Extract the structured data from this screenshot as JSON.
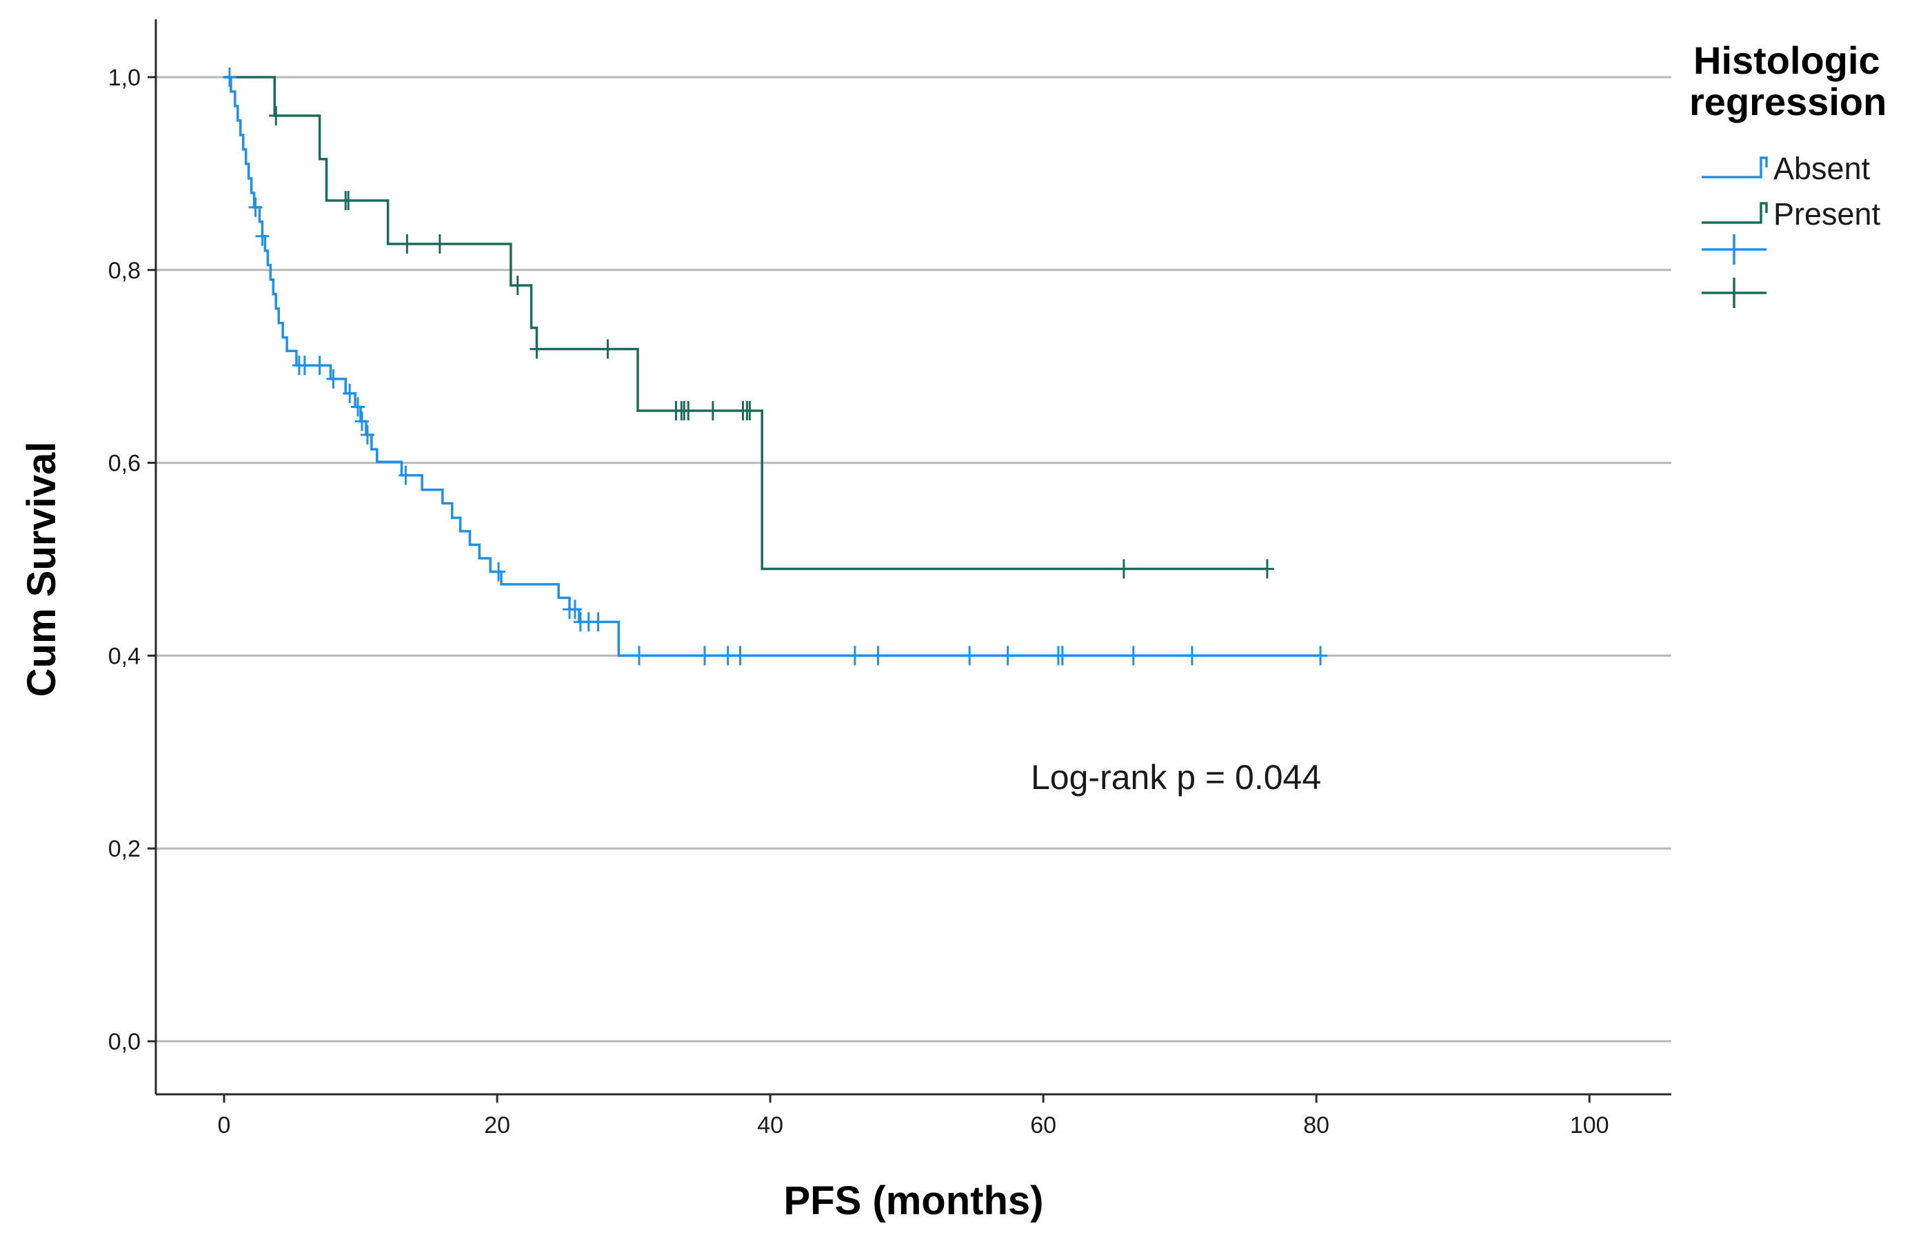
{
  "chart_data": {
    "type": "line",
    "subtype": "kaplan-meier",
    "xlabel": "PFS (months)",
    "ylabel": "Cum Survival",
    "xlim": [
      -5,
      106
    ],
    "ylim": [
      -0.055,
      1.06
    ],
    "xticks": [
      0,
      20,
      40,
      60,
      80,
      100
    ],
    "xtick_labels": [
      "0",
      "20",
      "40",
      "60",
      "80",
      "100"
    ],
    "yticks": [
      0.0,
      0.2,
      0.4,
      0.6,
      0.8,
      1.0
    ],
    "ytick_labels": [
      "0,0",
      "0,2",
      "0,4",
      "0,6",
      "0,8",
      "1,0"
    ],
    "grid": "horizontal",
    "legend": {
      "title_lines": [
        "Histologic",
        "regression"
      ],
      "placement": "top-right",
      "entries": [
        {
          "label": "Absent",
          "kind": "line",
          "series": 0
        },
        {
          "label": "Present",
          "kind": "line",
          "series": 1
        },
        {
          "label": "",
          "kind": "censor",
          "series": 0
        },
        {
          "label": "",
          "kind": "censor",
          "series": 1
        }
      ]
    },
    "annotation": "Log-rank p = 0.044",
    "series": [
      {
        "name": "Absent",
        "color": "#1e90e6",
        "steps": [
          [
            0,
            1.0
          ],
          [
            0.5,
            0.985
          ],
          [
            0.8,
            0.97
          ],
          [
            1.0,
            0.955
          ],
          [
            1.2,
            0.94
          ],
          [
            1.4,
            0.925
          ],
          [
            1.6,
            0.91
          ],
          [
            1.8,
            0.895
          ],
          [
            2.0,
            0.88
          ],
          [
            2.2,
            0.865
          ],
          [
            2.6,
            0.85
          ],
          [
            2.8,
            0.835
          ],
          [
            3.0,
            0.82
          ],
          [
            3.2,
            0.805
          ],
          [
            3.4,
            0.79
          ],
          [
            3.6,
            0.775
          ],
          [
            3.8,
            0.76
          ],
          [
            4.0,
            0.745
          ],
          [
            4.3,
            0.73
          ],
          [
            4.6,
            0.716
          ],
          [
            5.3,
            0.701
          ],
          [
            7.8,
            0.687
          ],
          [
            8.9,
            0.672
          ],
          [
            9.6,
            0.658
          ],
          [
            10.0,
            0.643
          ],
          [
            10.4,
            0.629
          ],
          [
            10.8,
            0.614
          ],
          [
            11.2,
            0.601
          ],
          [
            13.0,
            0.587
          ],
          [
            14.5,
            0.572
          ],
          [
            16.0,
            0.558
          ],
          [
            16.7,
            0.543
          ],
          [
            17.3,
            0.529
          ],
          [
            18.0,
            0.515
          ],
          [
            18.7,
            0.501
          ],
          [
            19.5,
            0.487
          ],
          [
            20.3,
            0.474
          ],
          [
            24.5,
            0.46
          ],
          [
            25.3,
            0.448
          ],
          [
            26.0,
            0.435
          ],
          [
            28.9,
            0.4
          ]
        ],
        "end_x": 80.3,
        "censor_times": [
          0.4,
          2.3,
          2.8,
          5.5,
          5.9,
          7.0,
          8.0,
          9.2,
          9.8,
          10.1,
          10.5,
          13.3,
          20.1,
          25.3,
          25.7,
          26.1,
          26.7,
          27.4,
          30.4,
          35.2,
          36.9,
          37.8,
          46.2,
          47.9,
          54.6,
          57.4,
          61.1,
          61.4,
          66.6,
          70.9,
          80.3
        ]
      },
      {
        "name": "Present",
        "color": "#1b6b5c",
        "steps": [
          [
            0,
            1.0
          ],
          [
            3.7,
            0.96
          ],
          [
            7.0,
            0.915
          ],
          [
            7.5,
            0.872
          ],
          [
            12.0,
            0.827
          ],
          [
            21.0,
            0.784
          ],
          [
            22.5,
            0.74
          ],
          [
            22.9,
            0.718
          ],
          [
            30.3,
            0.654
          ],
          [
            39.4,
            0.49
          ]
        ],
        "end_x": 76.5,
        "censor_times": [
          3.8,
          8.9,
          9.1,
          13.4,
          15.8,
          21.5,
          22.9,
          28.1,
          33.1,
          33.5,
          33.7,
          34.0,
          35.8,
          38.0,
          38.3,
          38.5,
          65.9,
          76.4
        ]
      }
    ]
  }
}
